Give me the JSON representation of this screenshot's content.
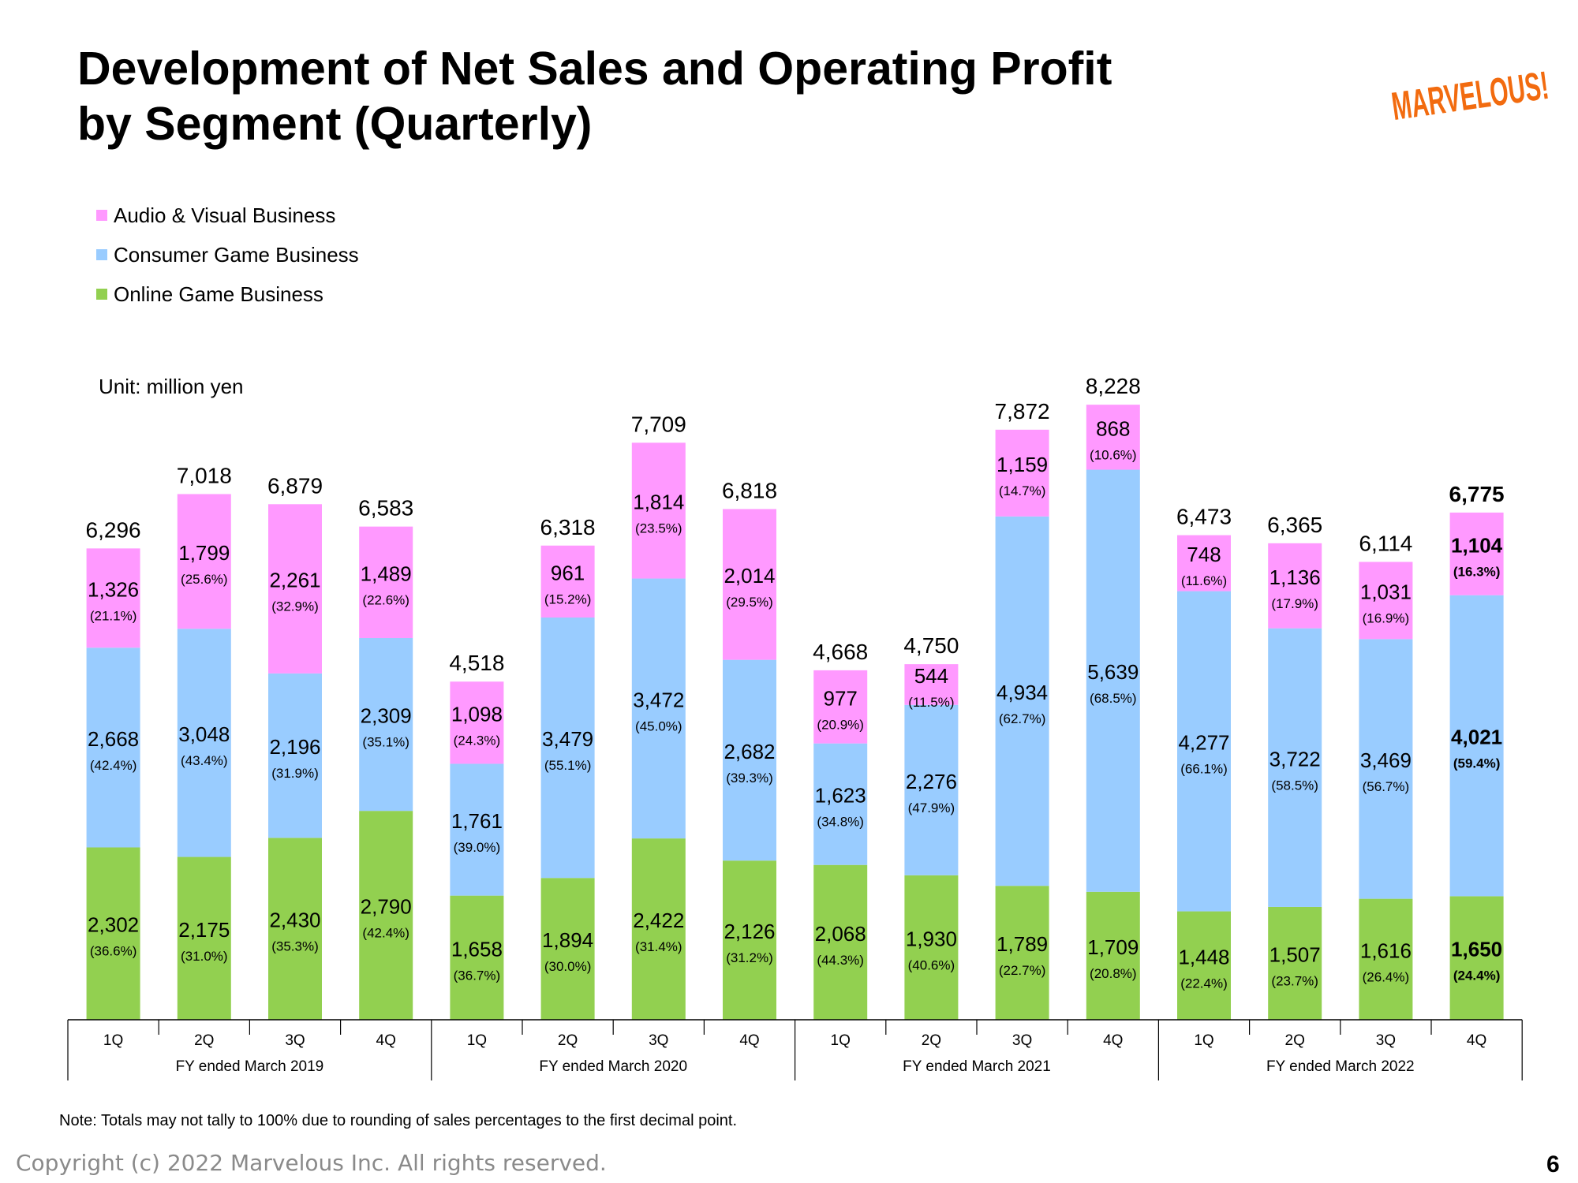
{
  "title_line1": "Development of Net Sales and Operating Profit",
  "title_line2": "by Segment (Quarterly)",
  "logo_text": "MARVELOUS!",
  "legend": [
    {
      "label": "Audio & Visual Business",
      "color": "#ff99ff"
    },
    {
      "label": "Consumer Game Business",
      "color": "#99ccff"
    },
    {
      "label": "Online Game Business",
      "color": "#92d050"
    }
  ],
  "unit": "Unit: million yen",
  "note": "Note: Totals may not tally to 100% due to rounding of sales percentages to the first decimal point.",
  "copyright": "Copyright (c) 2022 Marvelous Inc. All rights reserved.",
  "page_number": "6",
  "chart_data": {
    "type": "bar",
    "stacked": true,
    "categories": [
      "1Q",
      "2Q",
      "3Q",
      "4Q",
      "1Q",
      "2Q",
      "3Q",
      "4Q",
      "1Q",
      "2Q",
      "3Q",
      "4Q",
      "1Q",
      "2Q",
      "3Q",
      "4Q"
    ],
    "groups": [
      {
        "label": "FY ended March 2019",
        "count": 4
      },
      {
        "label": "FY ended March 2020",
        "count": 4
      },
      {
        "label": "FY ended March 2021",
        "count": 4
      },
      {
        "label": "FY ended March 2022",
        "count": 4
      }
    ],
    "series": [
      {
        "name": "Online Game Business",
        "color": "#92d050",
        "values": [
          2302,
          2175,
          2430,
          2790,
          1658,
          1894,
          2422,
          2126,
          2068,
          1930,
          1789,
          1709,
          1448,
          1507,
          1616,
          1650
        ],
        "labels": [
          "2,302",
          "2,175",
          "2,430",
          "2,790",
          "1,658",
          "1,894",
          "2,422",
          "2,126",
          "2,068",
          "1,930",
          "1,789",
          "1,709",
          "1,448",
          "1,507",
          "1,616",
          "1,650"
        ],
        "percents": [
          "(36.6%)",
          "(31.0%)",
          "(35.3%)",
          "(42.4%)",
          "(36.7%)",
          "(30.0%)",
          "(31.4%)",
          "(31.2%)",
          "(44.3%)",
          "(40.6%)",
          "(22.7%)",
          "(20.8%)",
          "(22.4%)",
          "(23.7%)",
          "(26.4%)",
          "(24.4%)"
        ]
      },
      {
        "name": "Consumer Game Business",
        "color": "#99ccff",
        "values": [
          2668,
          3048,
          2196,
          2309,
          1761,
          3479,
          3472,
          2682,
          1623,
          2276,
          4934,
          5639,
          4277,
          3722,
          3469,
          4021
        ],
        "labels": [
          "2,668",
          "3,048",
          "2,196",
          "2,309",
          "1,761",
          "3,479",
          "3,472",
          "2,682",
          "1,623",
          "2,276",
          "4,934",
          "5,639",
          "4,277",
          "3,722",
          "3,469",
          "4,021"
        ],
        "percents": [
          "(42.4%)",
          "(43.4%)",
          "(31.9%)",
          "(35.1%)",
          "(39.0%)",
          "(55.1%)",
          "(45.0%)",
          "(39.3%)",
          "(34.8%)",
          "(47.9%)",
          "(62.7%)",
          "(68.5%)",
          "(66.1%)",
          "(58.5%)",
          "(56.7%)",
          "(59.4%)"
        ]
      },
      {
        "name": "Audio & Visual Business",
        "color": "#ff99ff",
        "values": [
          1326,
          1799,
          2261,
          1489,
          1098,
          961,
          1814,
          2014,
          977,
          544,
          1159,
          868,
          748,
          1136,
          1031,
          1104
        ],
        "labels": [
          "1,326",
          "1,799",
          "2,261",
          "1,489",
          "1,098",
          "961",
          "1,814",
          "2,014",
          "977",
          "544",
          "1,159",
          "868",
          "748",
          "1,136",
          "1,031",
          "1,104"
        ],
        "percents": [
          "(21.1%)",
          "(25.6%)",
          "(32.9%)",
          "(22.6%)",
          "(24.3%)",
          "(15.2%)",
          "(23.5%)",
          "(29.5%)",
          "(20.9%)",
          "(11.5%)",
          "(14.7%)",
          "(10.6%)",
          "(11.6%)",
          "(17.9%)",
          "(16.9%)",
          "(16.3%)"
        ]
      }
    ],
    "totals": [
      6296,
      7018,
      6879,
      6583,
      4518,
      6318,
      7709,
      6818,
      4668,
      4750,
      7872,
      8228,
      6473,
      6365,
      6114,
      6775
    ],
    "total_labels": [
      "6,296",
      "7,018",
      "6,879",
      "6,583",
      "4,518",
      "6,318",
      "7,709",
      "6,818",
      "4,668",
      "4,750",
      "7,872",
      "8,228",
      "6,473",
      "6,365",
      "6,114",
      "6,775"
    ],
    "highlight_index": 15,
    "ylim": [
      0,
      8228
    ],
    "grid": false,
    "legend_position": "top-left"
  }
}
